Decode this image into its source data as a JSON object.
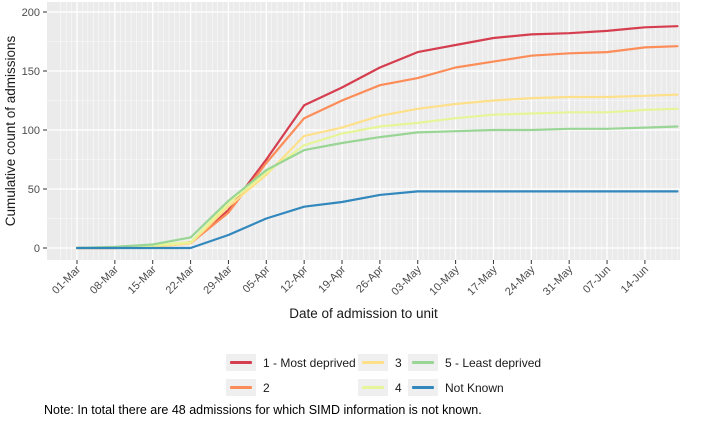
{
  "chart_data": {
    "type": "line",
    "title": "",
    "xlabel": "Date of admission to unit",
    "ylabel": "Cumulative count of admissions",
    "x_tick_labels": [
      "01-Mar",
      "08-Mar",
      "15-Mar",
      "22-Mar",
      "29-Mar",
      "05-Apr",
      "12-Apr",
      "19-Apr",
      "26-Apr",
      "03-May",
      "10-May",
      "17-May",
      "24-May",
      "31-May",
      "07-Jun",
      "14-Jun"
    ],
    "x_tick_days": [
      0,
      7,
      14,
      21,
      28,
      35,
      42,
      49,
      56,
      63,
      70,
      77,
      84,
      91,
      98,
      105
    ],
    "x_days": [
      0,
      7,
      14,
      21,
      28,
      35,
      42,
      49,
      56,
      63,
      70,
      77,
      84,
      91,
      98,
      105,
      111
    ],
    "ylim": [
      0,
      200
    ],
    "y_major_ticks": [
      0,
      50,
      100,
      150,
      200
    ],
    "y_minor_ticks": [
      25,
      75,
      125,
      175
    ],
    "grid": true,
    "panel_bg": "#ebebeb",
    "gridline_color": "#ffffff",
    "axis_text_color": "#4d4d4d",
    "axis_title_color": "#1a1a1a",
    "legend_position": "bottom",
    "series": [
      {
        "name": "1 - Most deprived",
        "color": "#d53e4f",
        "values": [
          0,
          0,
          1,
          5,
          32,
          75,
          121,
          136,
          153,
          166,
          172,
          178,
          181,
          182,
          184,
          187,
          188
        ]
      },
      {
        "name": "2",
        "color": "#fc8d59",
        "values": [
          0,
          0,
          1,
          4,
          30,
          72,
          110,
          125,
          138,
          144,
          153,
          158,
          163,
          165,
          166,
          170,
          171
        ]
      },
      {
        "name": "3",
        "color": "#fee08b",
        "values": [
          0,
          0,
          1,
          4,
          35,
          62,
          95,
          102,
          112,
          118,
          122,
          125,
          127,
          128,
          128,
          129,
          130
        ]
      },
      {
        "name": "4",
        "color": "#e6f598",
        "values": [
          0,
          0,
          2,
          5,
          38,
          64,
          87,
          97,
          103,
          106,
          110,
          113,
          114,
          115,
          115,
          117,
          118
        ]
      },
      {
        "name": "5 - Least deprived",
        "color": "#99d594",
        "values": [
          0,
          1,
          3,
          9,
          40,
          66,
          83,
          89,
          94,
          98,
          99,
          100,
          100,
          101,
          101,
          102,
          103
        ]
      },
      {
        "name": "Not Known",
        "color": "#3288bd",
        "values": [
          0,
          0,
          0,
          0,
          11,
          25,
          35,
          39,
          45,
          48,
          48,
          48,
          48,
          48,
          48,
          48,
          48
        ]
      }
    ]
  },
  "legend": {
    "columns": [
      [
        0,
        1
      ],
      [
        2,
        3
      ],
      [
        4,
        5
      ]
    ],
    "key_fill": "#efefef"
  },
  "note": "Note: In total there are 48 admissions for which SIMD information is not known."
}
